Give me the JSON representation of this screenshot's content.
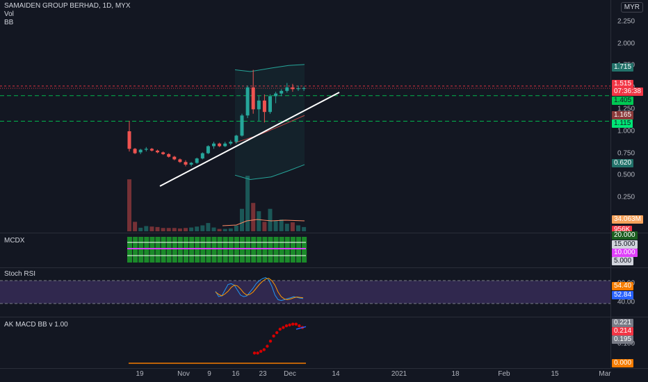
{
  "header": {
    "symbol_line": "SAMAIDEN GROUP BERHAD, 1D, MYX",
    "vol_label": "Vol",
    "bb_label": "BB",
    "currency_button": "MYR"
  },
  "colors": {
    "up": "#26a69a",
    "down": "#ef5350",
    "bg": "#131722",
    "grid": "#2a2e39"
  },
  "price_axis": {
    "ticks": [
      "2.250",
      "2.000",
      "1.750",
      "1.500",
      "1.250",
      "1.000",
      "0.750",
      "0.500",
      "0.250"
    ],
    "badges": [
      {
        "text": "1.715",
        "color": "#22726a"
      },
      {
        "text": "1.515",
        "color": "#f23645"
      },
      {
        "text": "07:36:38",
        "color": "#f23645"
      },
      {
        "text": "1.405",
        "color": "#00c853"
      },
      {
        "text": "1.165",
        "color": "#8b3a3a"
      },
      {
        "text": "1.115",
        "color": "#00e676"
      },
      {
        "text": "0.620",
        "color": "#22726a"
      },
      {
        "text": "34.063M",
        "color": "#f7a35c"
      },
      {
        "text": "956K",
        "color": "#f23645"
      }
    ]
  },
  "mcdx": {
    "title": "MCDX",
    "badges": [
      {
        "text": "20.000",
        "color": "#1b5e20"
      },
      {
        "text": "15.000",
        "color": "#d1d4dc"
      },
      {
        "text": "10.000",
        "color": "#e040fb"
      },
      {
        "text": "5.000",
        "color": "#d1d4dc"
      }
    ]
  },
  "stoch": {
    "title": "Stoch RSI",
    "ticks": [
      "80.00",
      "40.00"
    ],
    "badges": [
      {
        "text": "54.40",
        "color": "#f57c00"
      },
      {
        "text": "52.84",
        "color": "#2962ff"
      }
    ]
  },
  "macd": {
    "title": "AK MACD BB v 1.00",
    "ticks": [
      "0.100"
    ],
    "badges": [
      {
        "text": "0.221",
        "color": "#787b86"
      },
      {
        "text": "0.214",
        "color": "#f23645"
      },
      {
        "text": "0.195",
        "color": "#787b86"
      },
      {
        "text": "0.000",
        "color": "#f57c00"
      }
    ]
  },
  "time_axis": [
    "19",
    "Nov",
    "9",
    "16",
    "23",
    "Dec",
    "14",
    "2021",
    "18",
    "Feb",
    "15",
    "Mar"
  ],
  "chart_data": {
    "type": "candlestick",
    "ylim": [
      0,
      2.4
    ],
    "y_ticks": [
      0.25,
      0.5,
      0.75,
      1.0,
      1.25,
      1.5,
      1.75,
      2.0,
      2.25
    ],
    "candles": [
      {
        "o": 1.0,
        "h": 1.12,
        "l": 0.77,
        "c": 0.8
      },
      {
        "o": 0.8,
        "h": 0.81,
        "l": 0.74,
        "c": 0.75
      },
      {
        "o": 0.76,
        "h": 0.8,
        "l": 0.74,
        "c": 0.79
      },
      {
        "o": 0.79,
        "h": 0.82,
        "l": 0.77,
        "c": 0.8
      },
      {
        "o": 0.8,
        "h": 0.81,
        "l": 0.77,
        "c": 0.78
      },
      {
        "o": 0.78,
        "h": 0.79,
        "l": 0.75,
        "c": 0.76
      },
      {
        "o": 0.76,
        "h": 0.77,
        "l": 0.73,
        "c": 0.74
      },
      {
        "o": 0.74,
        "h": 0.75,
        "l": 0.7,
        "c": 0.71
      },
      {
        "o": 0.71,
        "h": 0.72,
        "l": 0.67,
        "c": 0.68
      },
      {
        "o": 0.68,
        "h": 0.69,
        "l": 0.64,
        "c": 0.65
      },
      {
        "o": 0.65,
        "h": 0.67,
        "l": 0.6,
        "c": 0.62
      },
      {
        "o": 0.62,
        "h": 0.65,
        "l": 0.6,
        "c": 0.64
      },
      {
        "o": 0.64,
        "h": 0.7,
        "l": 0.63,
        "c": 0.69
      },
      {
        "o": 0.69,
        "h": 0.76,
        "l": 0.68,
        "c": 0.75
      },
      {
        "o": 0.75,
        "h": 0.84,
        "l": 0.74,
        "c": 0.83
      },
      {
        "o": 0.83,
        "h": 0.88,
        "l": 0.8,
        "c": 0.86
      },
      {
        "o": 0.86,
        "h": 0.87,
        "l": 0.82,
        "c": 0.83
      },
      {
        "o": 0.83,
        "h": 0.88,
        "l": 0.82,
        "c": 0.86
      },
      {
        "o": 0.86,
        "h": 0.9,
        "l": 0.84,
        "c": 0.88
      },
      {
        "o": 0.88,
        "h": 0.96,
        "l": 0.86,
        "c": 0.95
      },
      {
        "o": 0.95,
        "h": 1.2,
        "l": 0.94,
        "c": 1.18
      },
      {
        "o": 1.18,
        "h": 1.52,
        "l": 1.15,
        "c": 1.5
      },
      {
        "o": 1.5,
        "h": 1.7,
        "l": 1.2,
        "c": 1.25
      },
      {
        "o": 1.25,
        "h": 1.4,
        "l": 1.12,
        "c": 1.35
      },
      {
        "o": 1.35,
        "h": 1.42,
        "l": 1.1,
        "c": 1.22
      },
      {
        "o": 1.22,
        "h": 1.42,
        "l": 1.2,
        "c": 1.4
      },
      {
        "o": 1.4,
        "h": 1.45,
        "l": 1.32,
        "c": 1.43
      },
      {
        "o": 1.43,
        "h": 1.48,
        "l": 1.4,
        "c": 1.46
      },
      {
        "o": 1.46,
        "h": 1.55,
        "l": 1.44,
        "c": 1.5
      },
      {
        "o": 1.5,
        "h": 1.54,
        "l": 1.45,
        "c": 1.48
      },
      {
        "o": 1.48,
        "h": 1.52,
        "l": 1.46,
        "c": 1.49
      },
      {
        "o": 1.49,
        "h": 1.51,
        "l": 1.46,
        "c": 1.49
      }
    ],
    "volume": [
      2.2,
      0.4,
      0.15,
      0.22,
      0.2,
      0.18,
      0.14,
      0.14,
      0.14,
      0.12,
      0.14,
      0.16,
      0.2,
      0.25,
      0.35,
      0.16,
      0.1,
      0.1,
      0.12,
      0.24,
      0.95,
      2.35,
      1.2,
      0.85,
      0.4,
      0.95,
      0.45,
      0.5,
      0.32,
      0.38,
      0.25,
      0.18
    ],
    "bb_upper": [
      1.7,
      1.68,
      1.72,
      1.75,
      1.76
    ],
    "bb_lower": [
      0.5,
      0.45,
      0.48,
      0.55,
      0.62
    ],
    "stoch_k": [
      52,
      38,
      40,
      55,
      70,
      72,
      68,
      55,
      42,
      38,
      40,
      50,
      60,
      72,
      80,
      85,
      88,
      82,
      65,
      42,
      30,
      28,
      30,
      33,
      35,
      38,
      36,
      34,
      33
    ],
    "stoch_d": [
      50,
      44,
      40,
      45,
      52,
      62,
      68,
      66,
      58,
      48,
      42,
      44,
      50,
      60,
      70,
      78,
      84,
      86,
      80,
      68,
      50,
      38,
      32,
      30,
      32,
      35,
      37,
      36,
      35
    ],
    "macd_dots": [
      0.06,
      0.06,
      0.07,
      0.08,
      0.1,
      0.13,
      0.16,
      0.18,
      0.2,
      0.21,
      0.22,
      0.225,
      0.23,
      0.23,
      0.22,
      0.21
    ]
  }
}
